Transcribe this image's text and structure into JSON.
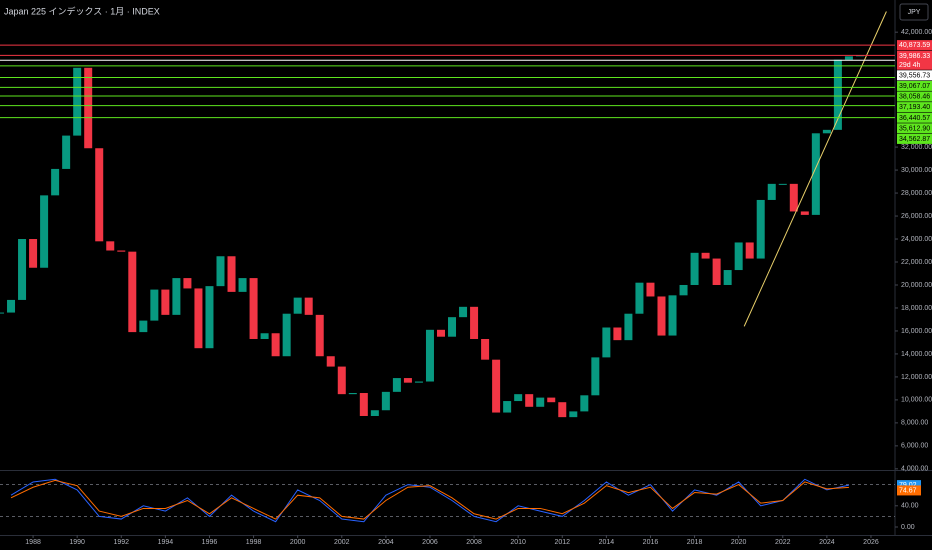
{
  "chart_data": [
    {
      "type": "candlestick",
      "title": "Japan 225 インデックス · 1月 · INDEX",
      "currency": "JPY",
      "series": [
        {
          "name": "Japan 225",
          "up_color": "#089981",
          "down_color": "#f23645",
          "x": [
            1986.5,
            1987,
            1987.5,
            1988,
            1988.5,
            1989,
            1989.5,
            1990,
            1990.5,
            1991,
            1991.5,
            1992,
            1992.5,
            1993,
            1993.5,
            1994,
            1994.5,
            1995,
            1995.5,
            1996,
            1996.5,
            1997,
            1997.5,
            1998,
            1998.5,
            1999,
            1999.5,
            2000,
            2000.5,
            2001,
            2001.5,
            2002,
            2002.5,
            2003,
            2003.5,
            2004,
            2004.5,
            2005,
            2005.5,
            2006,
            2006.5,
            2007,
            2007.5,
            2008,
            2008.5,
            2009,
            2009.5,
            2010,
            2010.5,
            2011,
            2011.5,
            2012,
            2012.5,
            2013,
            2013.5,
            2014,
            2014.5,
            2015,
            2015.5,
            2016,
            2016.5,
            2017,
            2017.5,
            2018,
            2018.5,
            2019,
            2019.5,
            2020,
            2020.5,
            2021,
            2021.5,
            2022,
            2022.5,
            2023,
            2023.5,
            2024,
            2024.5,
            2025,
            2025.5
          ],
          "values": [
            17600,
            18700,
            24000,
            21500,
            27800,
            30100,
            33000,
            38900,
            31900,
            23800,
            23000,
            22900,
            15900,
            16900,
            19600,
            17400,
            20600,
            19700,
            14500,
            19900,
            22500,
            19400,
            20600,
            15300,
            15800,
            13800,
            17500,
            18900,
            17400,
            13800,
            12900,
            10500,
            10600,
            8600,
            9100,
            10700,
            11900,
            11500,
            11600,
            16100,
            15500,
            17200,
            18100,
            15300,
            13500,
            8900,
            9900,
            10500,
            9400,
            10200,
            9800,
            8500,
            9000,
            10400,
            13700,
            16300,
            15200,
            17500,
            20200,
            19000,
            15600,
            19100,
            20000,
            22800,
            22300,
            20000,
            21300,
            23700,
            22300,
            27400,
            28800,
            28800,
            26400,
            26100,
            33200,
            33500,
            39600,
            39900,
            40000
          ]
        }
      ],
      "levels": {
        "values": [
          40873.59,
          39986.33,
          39556.73,
          39067.07,
          38058.46,
          37193.4,
          36440.57,
          35612.9,
          34562.87
        ],
        "value_labels": [
          "40,873.59",
          "39,986.33",
          "39,556.73",
          "39,067.07",
          "38,058.46",
          "37,193.40",
          "36,440.57",
          "35,612.90",
          "34,562.87"
        ],
        "colors": [
          "#f23645",
          "#f23645",
          "#ffffff",
          "#5ee61e",
          "#5ee61e",
          "#5ee61e",
          "#5ee61e",
          "#5ee61e",
          "#5ee61e"
        ]
      },
      "countdown": "29d 4h",
      "trendline": {
        "x": [
          2020.25,
          2026.7
        ],
        "values": [
          16400,
          43800
        ],
        "color": "#e8cf6a"
      },
      "xlim": [
        1986.5,
        2027.09
      ],
      "xticks": [
        1988,
        1990,
        1992,
        1994,
        1996,
        1998,
        2000,
        2002,
        2004,
        2006,
        2008,
        2010,
        2012,
        2014,
        2016,
        2018,
        2020,
        2022,
        2024,
        2026
      ],
      "ylim": [
        3900,
        44800
      ],
      "yticks": [
        {
          "value": 4000,
          "label": "4,000.00"
        },
        {
          "value": 6000,
          "label": "6,000.00"
        },
        {
          "value": 8000,
          "label": "8,000.00"
        },
        {
          "value": 10000,
          "label": "10,000.00"
        },
        {
          "value": 12000,
          "label": "12,000.00"
        },
        {
          "value": 14000,
          "label": "14,000.00"
        },
        {
          "value": 16000,
          "label": "16,000.00"
        },
        {
          "value": 18000,
          "label": "18,000.00"
        },
        {
          "value": 20000,
          "label": "20,000.00"
        },
        {
          "value": 22000,
          "label": "22,000.00"
        },
        {
          "value": 24000,
          "label": "24,000.00"
        },
        {
          "value": 26000,
          "label": "26,000.00"
        },
        {
          "value": 28000,
          "label": "28,000.00"
        },
        {
          "value": 30000,
          "label": "30,000.00"
        },
        {
          "value": 32000,
          "label": "32,000.00"
        },
        {
          "value": 42000,
          "label": "42,000.00"
        }
      ]
    },
    {
      "type": "line",
      "series": [
        {
          "name": "K",
          "color": "#2962ff",
          "label_color": "#2196f3",
          "x": [
            1987,
            1988,
            1989,
            1990,
            1991,
            1992,
            1993,
            1994,
            1995,
            1996,
            1997,
            1998,
            1999,
            2000,
            2001,
            2002,
            2003,
            2004,
            2005,
            2006,
            2007,
            2008,
            2009,
            2010,
            2011,
            2012,
            2013,
            2014,
            2015,
            2016,
            2017,
            2018,
            2019,
            2020,
            2021,
            2022,
            2023,
            2024,
            2025
          ],
          "values": [
            60,
            85,
            90,
            70,
            20,
            15,
            40,
            30,
            55,
            20,
            60,
            30,
            10,
            70,
            50,
            15,
            10,
            60,
            80,
            75,
            50,
            20,
            10,
            40,
            30,
            20,
            50,
            85,
            60,
            80,
            30,
            70,
            60,
            85,
            40,
            50,
            90,
            70,
            79.02
          ]
        },
        {
          "name": "D",
          "color": "#ff6d00",
          "label_color": "#ff6d00",
          "x": [
            1987,
            1988,
            1989,
            1990,
            1991,
            1992,
            1993,
            1994,
            1995,
            1996,
            1997,
            1998,
            1999,
            2000,
            2001,
            2002,
            2003,
            2004,
            2005,
            2006,
            2007,
            2008,
            2009,
            2010,
            2011,
            2012,
            2013,
            2014,
            2015,
            2016,
            2017,
            2018,
            2019,
            2020,
            2021,
            2022,
            2023,
            2024,
            2025
          ],
          "values": [
            55,
            75,
            88,
            78,
            30,
            20,
            35,
            35,
            50,
            25,
            55,
            35,
            15,
            60,
            55,
            20,
            15,
            50,
            75,
            78,
            55,
            25,
            15,
            35,
            35,
            25,
            45,
            78,
            65,
            75,
            35,
            65,
            62,
            80,
            45,
            50,
            85,
            72,
            74.67
          ]
        }
      ],
      "bands": [
        80,
        20
      ],
      "ylim": [
        0,
        100
      ],
      "yticks": [
        {
          "value": 40,
          "label": "40.00"
        },
        {
          "value": 0,
          "label": "0.00"
        }
      ]
    }
  ]
}
